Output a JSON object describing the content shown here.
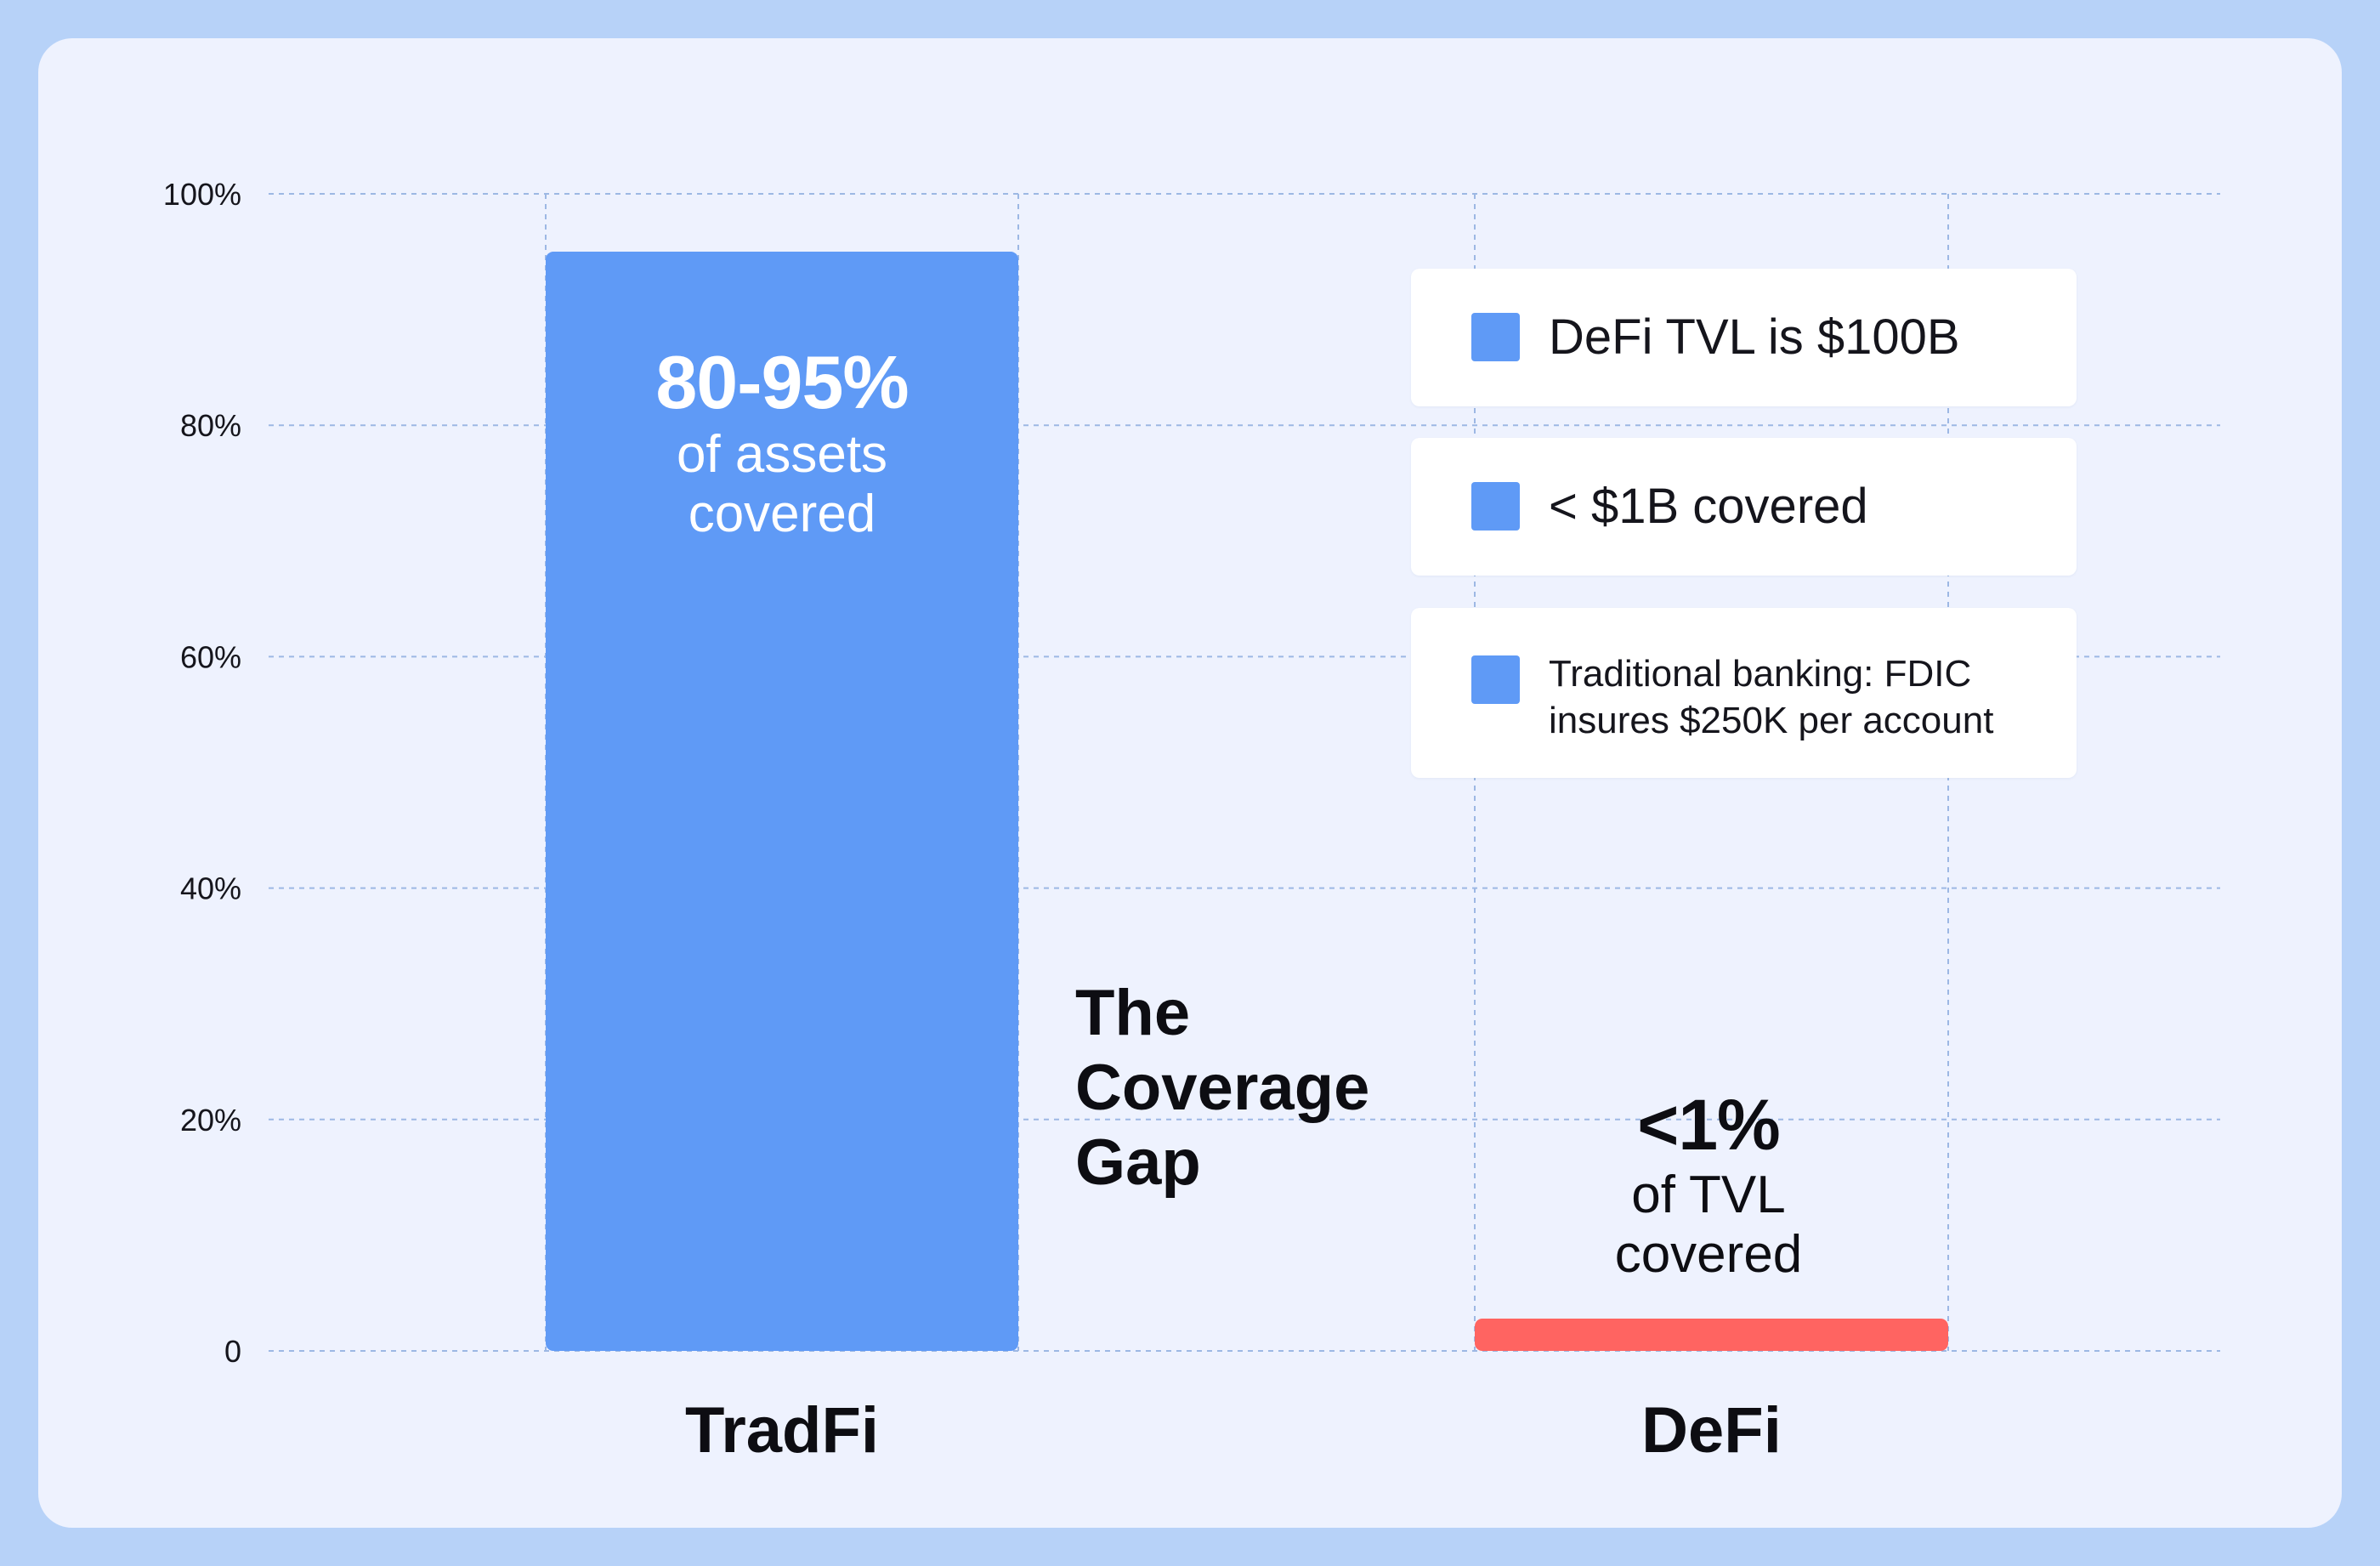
{
  "chart_data": {
    "type": "bar",
    "categories": [
      "TradFi",
      "DeFi"
    ],
    "values": [
      95,
      1
    ],
    "bar_colors": [
      "#5f9af6",
      "#ff6461"
    ],
    "ylim": [
      0,
      100
    ],
    "yticks": [
      0,
      20,
      40,
      60,
      80,
      100
    ],
    "ytick_labels": [
      "0",
      "20%",
      "40%",
      "60%",
      "80%",
      "100%"
    ],
    "grid": true,
    "bar_labels": [
      {
        "big": "80-95%",
        "line1": "of assets",
        "line2": "covered"
      },
      {
        "big": "<1%",
        "line1": "of TVL",
        "line2": "covered"
      }
    ],
    "annotation": {
      "line1": "The",
      "line2": "Coverage",
      "line3": "Gap"
    },
    "legend": [
      {
        "text": "DeFi TVL is $100B",
        "color": "#5f9af6"
      },
      {
        "text": "< $1B covered",
        "color": "#5f9af6"
      },
      {
        "line1": "Traditional banking: FDIC",
        "line2": "insures $250K per account",
        "color": "#5f9af6"
      }
    ],
    "legend_placement": "top-right"
  }
}
